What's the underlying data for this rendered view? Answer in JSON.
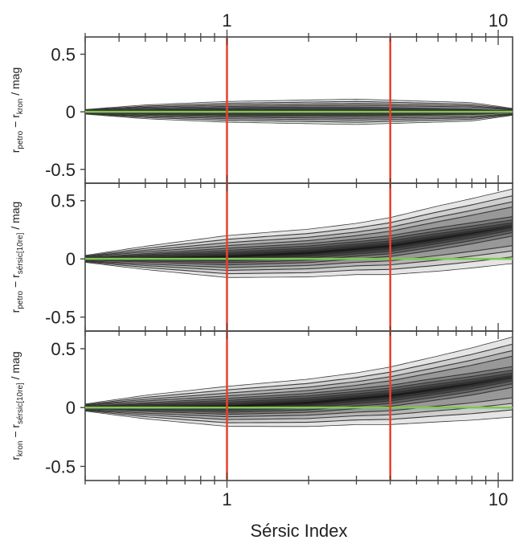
{
  "chart_data": {
    "type": "heatmap",
    "xlabel": "Sérsic Index",
    "x_scale": "log",
    "x_ticks": [
      {
        "value": 1,
        "label": "1"
      },
      {
        "value": 10,
        "label": "10"
      }
    ],
    "xlim": [
      0.3,
      11.3
    ],
    "vertical_lines": {
      "x": [
        1,
        4
      ],
      "color": "#e8412c"
    },
    "zero_line": {
      "y": 0,
      "color": "#7ec850"
    },
    "panels": [
      {
        "ylabel": {
          "main1": "r",
          "sub1": "petro",
          "op": " − ",
          "main2": "r",
          "sub2": "kron",
          "unit": " / mag"
        },
        "ylim": [
          -0.62,
          0.65
        ],
        "y_ticks": [
          {
            "value": 0.5,
            "label": "0.5"
          },
          {
            "value": 0,
            "label": "0"
          },
          {
            "value": -0.5,
            "label": "-0.5"
          }
        ],
        "density_center": [
          [
            0.3,
            0.0
          ],
          [
            1,
            0.0
          ],
          [
            4,
            0.0
          ],
          [
            11.3,
            0.0
          ]
        ],
        "density_half_width": [
          [
            0.3,
            0.02
          ],
          [
            0.5,
            0.06
          ],
          [
            1,
            0.09
          ],
          [
            3,
            0.11
          ],
          [
            8,
            0.08
          ],
          [
            11.3,
            0.03
          ]
        ]
      },
      {
        "ylabel": {
          "main1": "r",
          "sub1": "petro",
          "op": " − ",
          "main2": "r",
          "sub2": "sérsic[10re]",
          "unit": " / mag"
        },
        "ylim": [
          -0.62,
          0.65
        ],
        "y_ticks": [
          {
            "value": 0.5,
            "label": "0.5"
          },
          {
            "value": 0,
            "label": "0"
          },
          {
            "value": -0.5,
            "label": "-0.5"
          }
        ],
        "density_center": [
          [
            0.3,
            0.0
          ],
          [
            1,
            0.02
          ],
          [
            2,
            0.05
          ],
          [
            4,
            0.11
          ],
          [
            8,
            0.22
          ],
          [
            11.3,
            0.28
          ]
        ],
        "density_half_width": [
          [
            0.3,
            0.03
          ],
          [
            0.5,
            0.1
          ],
          [
            1,
            0.18
          ],
          [
            3,
            0.22
          ],
          [
            6,
            0.28
          ],
          [
            11.3,
            0.32
          ]
        ]
      },
      {
        "ylabel": {
          "main1": "r",
          "sub1": "kron",
          "op": " − ",
          "main2": "r",
          "sub2": "sérsic[10re]",
          "unit": " / mag"
        },
        "ylim": [
          -0.62,
          0.65
        ],
        "y_ticks": [
          {
            "value": 0.5,
            "label": "0.5"
          },
          {
            "value": 0,
            "label": "0"
          },
          {
            "value": -0.5,
            "label": "-0.5"
          }
        ],
        "density_center": [
          [
            0.3,
            0.0
          ],
          [
            1,
            0.01
          ],
          [
            2,
            0.04
          ],
          [
            4,
            0.1
          ],
          [
            8,
            0.2
          ],
          [
            11.3,
            0.26
          ]
        ],
        "density_half_width": [
          [
            0.3,
            0.03
          ],
          [
            0.5,
            0.1
          ],
          [
            1,
            0.17
          ],
          [
            3,
            0.22
          ],
          [
            6,
            0.28
          ],
          [
            11.3,
            0.34
          ]
        ]
      }
    ]
  }
}
